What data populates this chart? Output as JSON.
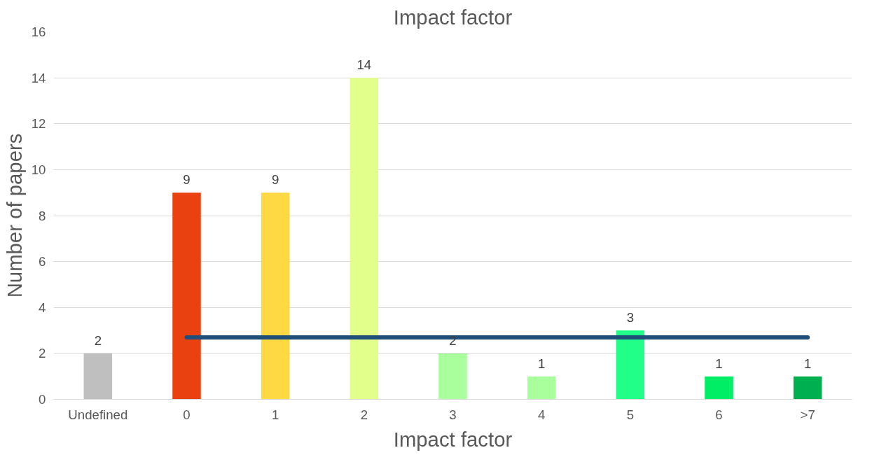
{
  "chart_data": {
    "type": "bar",
    "title": "Impact factor",
    "xlabel": "Impact factor",
    "ylabel": "Number of papers",
    "categories": [
      "Undefined",
      "0",
      "1",
      "2",
      "3",
      "4",
      "5",
      "6",
      ">7"
    ],
    "series": [
      {
        "colors": [
          "#bfbfbf",
          "#ea4110",
          "#ffd944",
          "#e2ff8c",
          "#a9ff9c",
          "#a9ff9c",
          "#22ff88",
          "#00ee66",
          "#00b050"
        ],
        "values": [
          2,
          9,
          9,
          14,
          2,
          1,
          3,
          1,
          1
        ],
        "value_labels": [
          "2",
          "9",
          "9",
          "14",
          "2",
          "1",
          "3",
          "1",
          "1"
        ]
      },
      {
        "type": "line",
        "color": "#1f4e79",
        "values": [
          null,
          2.7,
          2.7,
          2.7,
          2.7,
          2.7,
          2.7,
          2.7,
          2.7
        ]
      }
    ],
    "ylim": [
      0,
      16
    ],
    "yticks": [
      0,
      2,
      4,
      6,
      8,
      10,
      12,
      14,
      16
    ],
    "grid": "y"
  }
}
